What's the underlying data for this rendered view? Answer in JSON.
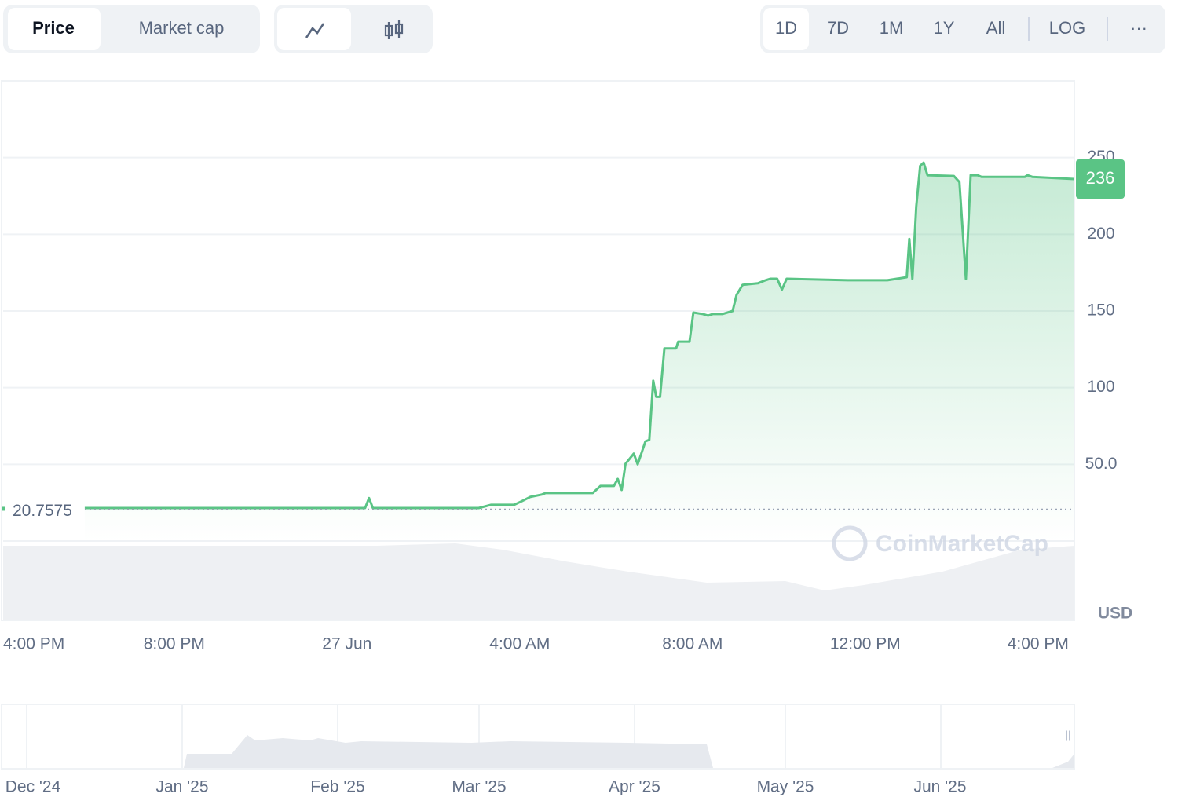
{
  "controls": {
    "metric_tabs": [
      "Price",
      "Market cap"
    ],
    "ranges": [
      "1D",
      "7D",
      "1M",
      "1Y",
      "All"
    ],
    "log": "LOG",
    "more": "···"
  },
  "chart_data": {
    "type": "line",
    "currency": "USD",
    "reference_line": 20.7575,
    "x": [
      1.93,
      8.42,
      8.51,
      8.6,
      11.05,
      11.33,
      11.87,
      12.05,
      12.24,
      12.51,
      12.6,
      13.69,
      13.87,
      14.18,
      14.27,
      14.36,
      14.45,
      14.64,
      14.73,
      14.91,
      15,
      15.09,
      15.16,
      15.25,
      15.35,
      15.62,
      15.67,
      15.93,
      16.02,
      16.24,
      16.36,
      16.47,
      16.69,
      16.93,
      17.02,
      17.16,
      17.51,
      17.69,
      17.8,
      17.96,
      18.07,
      18.18,
      19.6,
      20.51,
      20.96,
      21.02,
      21.09,
      21.18,
      21.27,
      21.35,
      21.44,
      22.05,
      22.18,
      22.33,
      22.44,
      22.6,
      22.69,
      23.69,
      23.76,
      23.87,
      24.84
    ],
    "series": [
      {
        "color": "#5ac485",
        "values": [
          21.5,
          21.5,
          28,
          21.5,
          21.5,
          23.6,
          23.6,
          26,
          28.7,
          30.3,
          31.3,
          31.3,
          35.9,
          35.9,
          40.5,
          33.3,
          50.3,
          57,
          50,
          65,
          66,
          104.6,
          94,
          94,
          125.6,
          125.6,
          130,
          130,
          149,
          148,
          147,
          148,
          148,
          150,
          160.5,
          167,
          168,
          170,
          171,
          171,
          164,
          171,
          170,
          170,
          172,
          197,
          171,
          218,
          244.6,
          246.7,
          238.5,
          238,
          234,
          171,
          238.5,
          238.5,
          237.4,
          237.4,
          238.5,
          237.4,
          236
        ]
      }
    ],
    "xlim": [
      0.04,
      24.84
    ],
    "xticks": [
      {
        "value": 0,
        "label": "4:00 PM"
      },
      {
        "value": 4,
        "label": "8:00 PM"
      },
      {
        "value": 8,
        "label": "27 Jun"
      },
      {
        "value": 12,
        "label": "4:00 AM"
      },
      {
        "value": 16,
        "label": "8:00 AM"
      },
      {
        "value": 20,
        "label": "12:00 PM"
      },
      {
        "value": 24,
        "label": "4:00 PM"
      }
    ],
    "ylim": [
      0,
      300
    ],
    "yticks": [
      {
        "value": 50,
        "label": "50.0"
      },
      100,
      150,
      200,
      250
    ],
    "grid": true
  },
  "watermark": "CoinMarketCap",
  "navigator": {
    "labels": [
      "Dec '24",
      "Jan '25",
      "Feb '25",
      "Mar '25",
      "Apr '25",
      "May '25",
      "Jun '25"
    ]
  }
}
